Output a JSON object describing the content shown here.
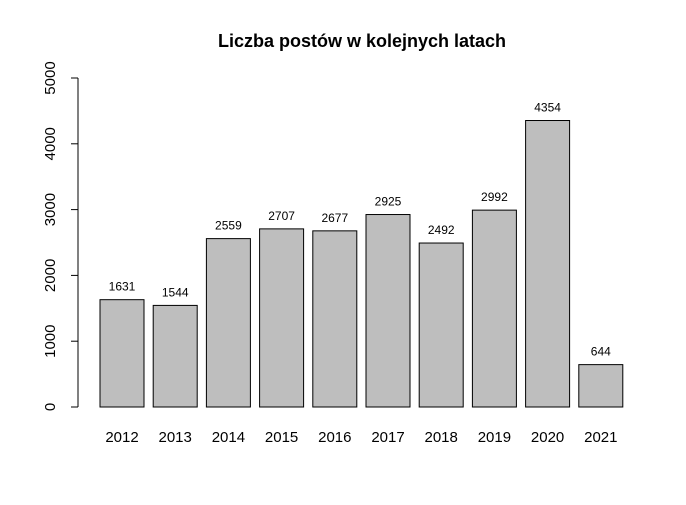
{
  "chart_data": {
    "type": "bar",
    "title": "Liczba postów w kolejnych latach",
    "xlabel": "",
    "ylabel": "",
    "categories": [
      "2012",
      "2013",
      "2014",
      "2015",
      "2016",
      "2017",
      "2018",
      "2019",
      "2020",
      "2021"
    ],
    "values": [
      1631,
      1544,
      2559,
      2707,
      2677,
      2925,
      2492,
      2992,
      4354,
      644
    ],
    "data_labels": [
      "1631",
      "1544",
      "2559",
      "2707",
      "2677",
      "2925",
      "2492",
      "2992",
      "4354",
      "644"
    ],
    "ylim": [
      0,
      5000
    ],
    "yticks": [
      0,
      1000,
      2000,
      3000,
      4000,
      5000
    ],
    "ytick_labels": [
      "0",
      "1000",
      "2000",
      "3000",
      "4000",
      "5000"
    ],
    "grid": false,
    "legend": "none",
    "bar_color": "#bebebe",
    "border_color": "#000000"
  }
}
